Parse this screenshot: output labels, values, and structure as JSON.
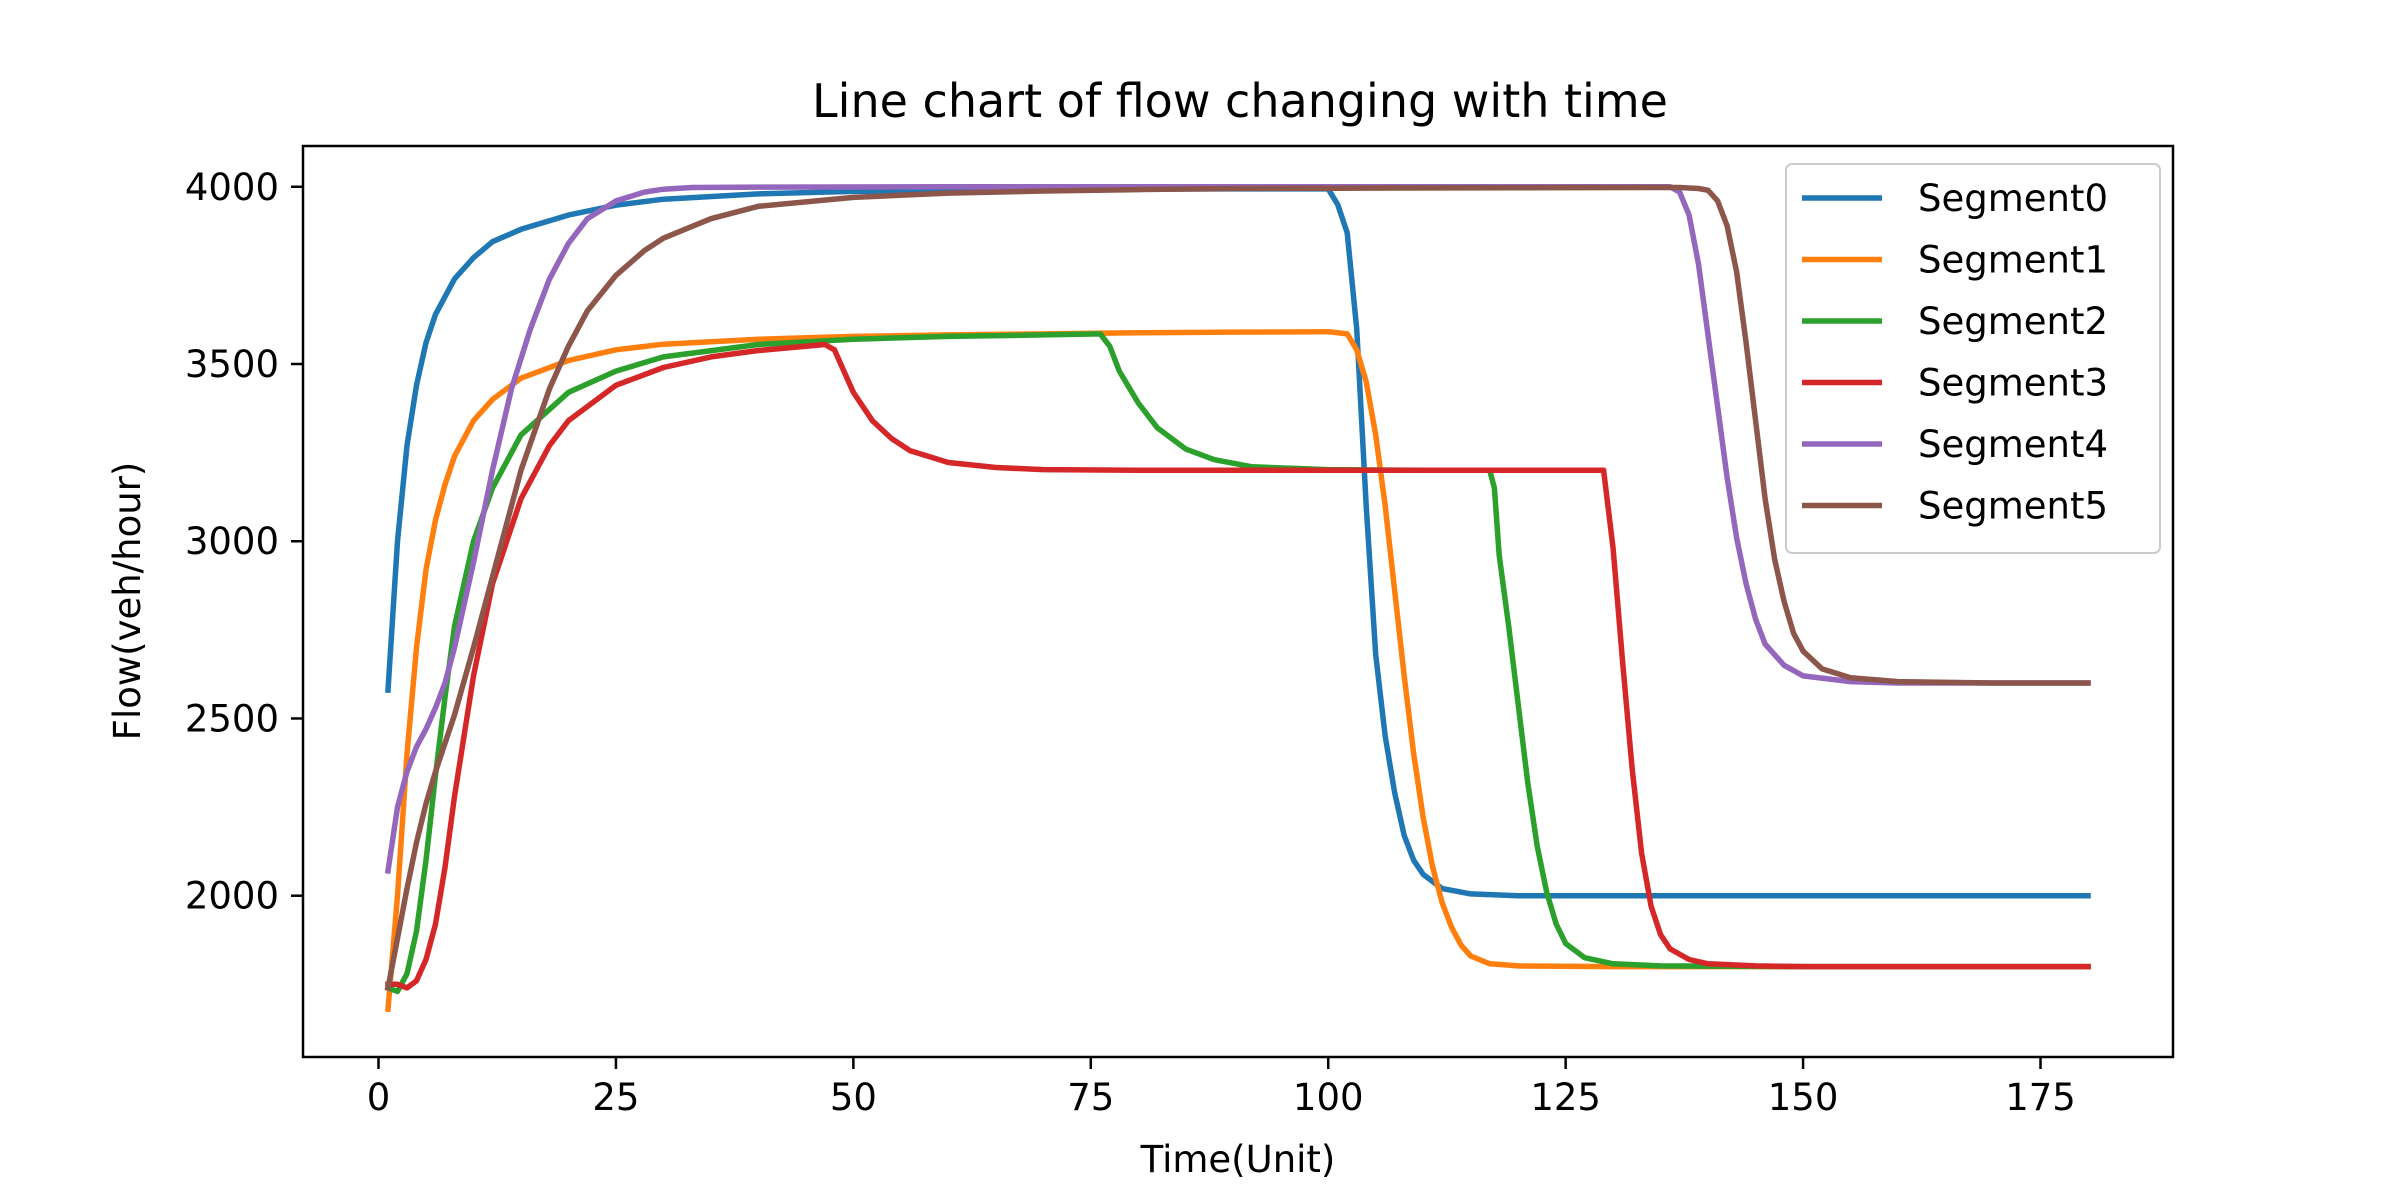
{
  "chart_data": {
    "type": "line",
    "title": "Line chart of flow changing with time",
    "xlabel": "Time(Unit)",
    "ylabel": "Flow(veh/hour)",
    "xlim": [
      -7.95,
      188.95
    ],
    "ylim": [
      1545,
      4115
    ],
    "xticks": [
      0,
      25,
      50,
      75,
      100,
      125,
      150,
      175
    ],
    "yticks": [
      2000,
      2500,
      3000,
      3500,
      4000
    ],
    "grid": false,
    "legend_position": "upper right",
    "series": [
      {
        "name": "Segment0",
        "color": "#1f77b4",
        "points": [
          [
            1,
            2580
          ],
          [
            2,
            3000
          ],
          [
            3,
            3270
          ],
          [
            4,
            3440
          ],
          [
            5,
            3560
          ],
          [
            6,
            3640
          ],
          [
            8,
            3740
          ],
          [
            10,
            3800
          ],
          [
            12,
            3845
          ],
          [
            15,
            3880
          ],
          [
            20,
            3920
          ],
          [
            25,
            3948
          ],
          [
            30,
            3965
          ],
          [
            40,
            3980
          ],
          [
            50,
            3987
          ],
          [
            60,
            3990
          ],
          [
            70,
            3992
          ],
          [
            80,
            3993
          ],
          [
            90,
            3994
          ],
          [
            100,
            3994
          ],
          [
            101,
            3950
          ],
          [
            102,
            3870
          ],
          [
            103,
            3600
          ],
          [
            104,
            3100
          ],
          [
            105,
            2680
          ],
          [
            106,
            2450
          ],
          [
            107,
            2290
          ],
          [
            108,
            2170
          ],
          [
            109,
            2100
          ],
          [
            110,
            2060
          ],
          [
            112,
            2020
          ],
          [
            115,
            2005
          ],
          [
            120,
            2000
          ],
          [
            130,
            2000
          ],
          [
            150,
            2000
          ],
          [
            170,
            2000
          ],
          [
            180,
            2000
          ]
        ]
      },
      {
        "name": "Segment1",
        "color": "#ff7f0e",
        "points": [
          [
            1,
            1680
          ],
          [
            2,
            2000
          ],
          [
            3,
            2400
          ],
          [
            4,
            2700
          ],
          [
            5,
            2920
          ],
          [
            6,
            3060
          ],
          [
            7,
            3160
          ],
          [
            8,
            3240
          ],
          [
            10,
            3340
          ],
          [
            12,
            3400
          ],
          [
            15,
            3460
          ],
          [
            20,
            3510
          ],
          [
            25,
            3540
          ],
          [
            30,
            3556
          ],
          [
            40,
            3570
          ],
          [
            50,
            3578
          ],
          [
            60,
            3582
          ],
          [
            70,
            3585
          ],
          [
            80,
            3588
          ],
          [
            90,
            3590
          ],
          [
            100,
            3591
          ],
          [
            102,
            3585
          ],
          [
            103,
            3540
          ],
          [
            104,
            3450
          ],
          [
            105,
            3300
          ],
          [
            106,
            3100
          ],
          [
            107,
            2860
          ],
          [
            108,
            2620
          ],
          [
            109,
            2400
          ],
          [
            110,
            2220
          ],
          [
            111,
            2080
          ],
          [
            112,
            1980
          ],
          [
            113,
            1910
          ],
          [
            114,
            1860
          ],
          [
            115,
            1830
          ],
          [
            117,
            1808
          ],
          [
            120,
            1802
          ],
          [
            130,
            1800
          ],
          [
            150,
            1800
          ],
          [
            170,
            1800
          ],
          [
            180,
            1800
          ]
        ]
      },
      {
        "name": "Segment2",
        "color": "#2ca02c",
        "points": [
          [
            1,
            1740
          ],
          [
            2,
            1730
          ],
          [
            3,
            1780
          ],
          [
            4,
            1900
          ],
          [
            5,
            2100
          ],
          [
            6,
            2340
          ],
          [
            7,
            2560
          ],
          [
            8,
            2760
          ],
          [
            10,
            3000
          ],
          [
            12,
            3150
          ],
          [
            15,
            3300
          ],
          [
            20,
            3420
          ],
          [
            25,
            3480
          ],
          [
            30,
            3520
          ],
          [
            40,
            3555
          ],
          [
            50,
            3570
          ],
          [
            60,
            3578
          ],
          [
            70,
            3582
          ],
          [
            76,
            3585
          ],
          [
            77,
            3550
          ],
          [
            78,
            3480
          ],
          [
            80,
            3390
          ],
          [
            82,
            3320
          ],
          [
            85,
            3260
          ],
          [
            88,
            3230
          ],
          [
            92,
            3210
          ],
          [
            100,
            3202
          ],
          [
            110,
            3200
          ],
          [
            117,
            3200
          ],
          [
            117.5,
            3150
          ],
          [
            118,
            2960
          ],
          [
            119,
            2760
          ],
          [
            120,
            2540
          ],
          [
            121,
            2320
          ],
          [
            122,
            2140
          ],
          [
            123,
            2010
          ],
          [
            124,
            1920
          ],
          [
            125,
            1865
          ],
          [
            127,
            1825
          ],
          [
            130,
            1808
          ],
          [
            135,
            1802
          ],
          [
            150,
            1800
          ],
          [
            170,
            1800
          ],
          [
            180,
            1800
          ]
        ]
      },
      {
        "name": "Segment3",
        "color": "#d62728",
        "points": [
          [
            1,
            1750
          ],
          [
            2,
            1750
          ],
          [
            3,
            1740
          ],
          [
            4,
            1760
          ],
          [
            5,
            1820
          ],
          [
            6,
            1920
          ],
          [
            7,
            2080
          ],
          [
            8,
            2280
          ],
          [
            10,
            2620
          ],
          [
            12,
            2880
          ],
          [
            15,
            3120
          ],
          [
            18,
            3270
          ],
          [
            20,
            3340
          ],
          [
            25,
            3440
          ],
          [
            30,
            3490
          ],
          [
            35,
            3520
          ],
          [
            40,
            3538
          ],
          [
            45,
            3550
          ],
          [
            47,
            3555
          ],
          [
            48,
            3540
          ],
          [
            49,
            3480
          ],
          [
            50,
            3420
          ],
          [
            52,
            3340
          ],
          [
            54,
            3290
          ],
          [
            56,
            3255
          ],
          [
            60,
            3222
          ],
          [
            65,
            3208
          ],
          [
            70,
            3202
          ],
          [
            80,
            3200
          ],
          [
            100,
            3200
          ],
          [
            128,
            3200
          ],
          [
            129,
            3200
          ],
          [
            130,
            2980
          ],
          [
            131,
            2660
          ],
          [
            132,
            2360
          ],
          [
            133,
            2120
          ],
          [
            134,
            1970
          ],
          [
            135,
            1890
          ],
          [
            136,
            1850
          ],
          [
            138,
            1820
          ],
          [
            140,
            1808
          ],
          [
            145,
            1802
          ],
          [
            150,
            1800
          ],
          [
            170,
            1800
          ],
          [
            180,
            1800
          ]
        ]
      },
      {
        "name": "Segment4",
        "color": "#9467bd",
        "points": [
          [
            1,
            2070
          ],
          [
            2,
            2250
          ],
          [
            3,
            2350
          ],
          [
            4,
            2420
          ],
          [
            5,
            2470
          ],
          [
            6,
            2530
          ],
          [
            7,
            2600
          ],
          [
            8,
            2700
          ],
          [
            10,
            2940
          ],
          [
            12,
            3200
          ],
          [
            14,
            3430
          ],
          [
            16,
            3600
          ],
          [
            18,
            3740
          ],
          [
            20,
            3840
          ],
          [
            22,
            3910
          ],
          [
            25,
            3960
          ],
          [
            28,
            3985
          ],
          [
            30,
            3993
          ],
          [
            33,
            3998
          ],
          [
            40,
            3999
          ],
          [
            60,
            4000
          ],
          [
            100,
            4000
          ],
          [
            136,
            4000
          ],
          [
            137,
            3985
          ],
          [
            138,
            3920
          ],
          [
            139,
            3780
          ],
          [
            140,
            3580
          ],
          [
            141,
            3380
          ],
          [
            142,
            3180
          ],
          [
            143,
            3010
          ],
          [
            144,
            2880
          ],
          [
            145,
            2780
          ],
          [
            146,
            2710
          ],
          [
            148,
            2650
          ],
          [
            150,
            2620
          ],
          [
            155,
            2604
          ],
          [
            160,
            2600
          ],
          [
            170,
            2600
          ],
          [
            180,
            2600
          ]
        ]
      },
      {
        "name": "Segment5",
        "color": "#8c564b",
        "points": [
          [
            1,
            1740
          ],
          [
            2,
            1880
          ],
          [
            3,
            2020
          ],
          [
            4,
            2150
          ],
          [
            5,
            2260
          ],
          [
            6,
            2350
          ],
          [
            7,
            2430
          ],
          [
            8,
            2510
          ],
          [
            10,
            2700
          ],
          [
            12,
            2900
          ],
          [
            15,
            3200
          ],
          [
            18,
            3430
          ],
          [
            20,
            3550
          ],
          [
            22,
            3650
          ],
          [
            25,
            3750
          ],
          [
            28,
            3820
          ],
          [
            30,
            3855
          ],
          [
            35,
            3910
          ],
          [
            40,
            3945
          ],
          [
            50,
            3970
          ],
          [
            60,
            3982
          ],
          [
            70,
            3988
          ],
          [
            80,
            3992
          ],
          [
            90,
            3995
          ],
          [
            100,
            3996
          ],
          [
            120,
            3997
          ],
          [
            137,
            3998
          ],
          [
            139,
            3995
          ],
          [
            140,
            3990
          ],
          [
            141,
            3960
          ],
          [
            142,
            3890
          ],
          [
            143,
            3760
          ],
          [
            144,
            3560
          ],
          [
            145,
            3340
          ],
          [
            146,
            3120
          ],
          [
            147,
            2950
          ],
          [
            148,
            2830
          ],
          [
            149,
            2740
          ],
          [
            150,
            2690
          ],
          [
            152,
            2640
          ],
          [
            155,
            2615
          ],
          [
            160,
            2604
          ],
          [
            170,
            2600
          ],
          [
            180,
            2600
          ]
        ]
      }
    ]
  }
}
